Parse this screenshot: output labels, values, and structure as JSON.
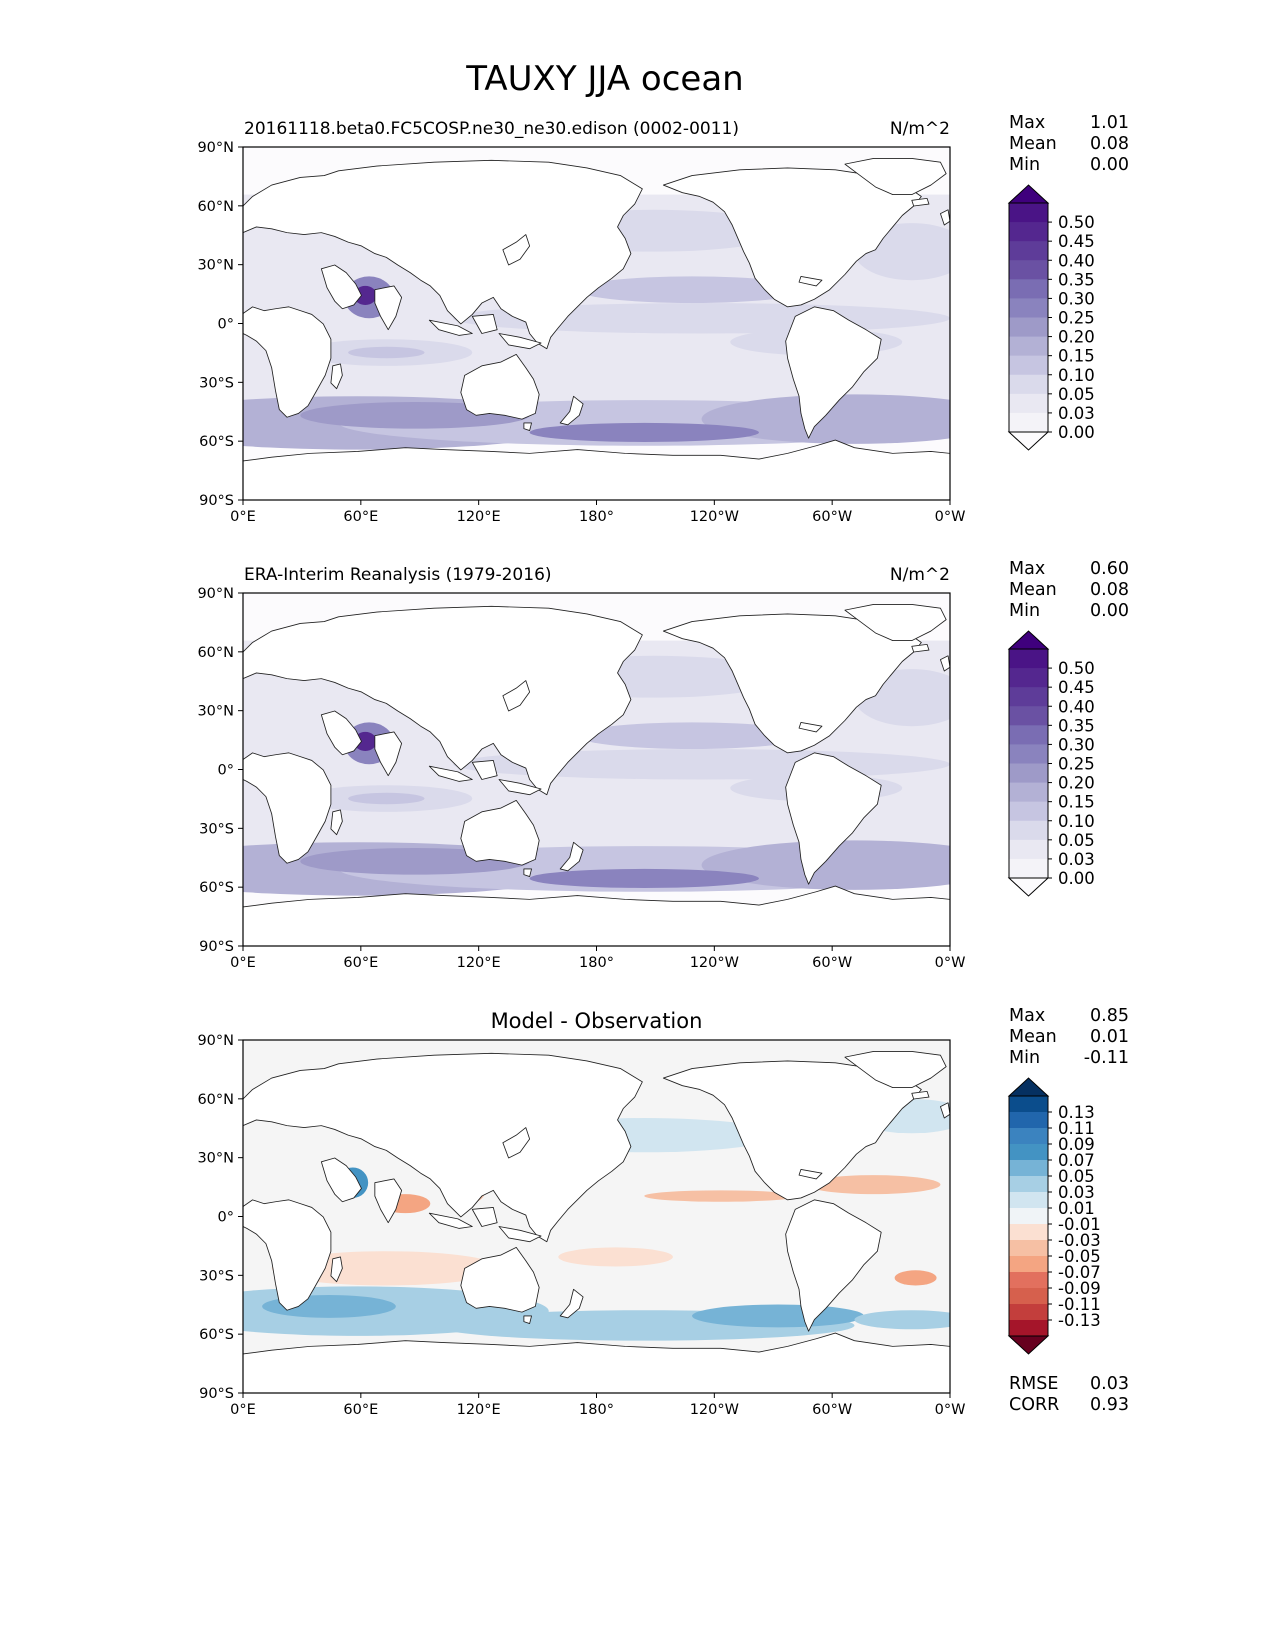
{
  "figure": {
    "title": "TAUXY JJA ocean"
  },
  "panels": [
    {
      "id": "model",
      "title_left": "20161118.beta0.FC5COSP.ne30_ne30.edison (0002-0011)",
      "title_center": "",
      "units": "N/m^2",
      "stats": {
        "labels": [
          "Max",
          "Mean",
          "Min"
        ],
        "values": [
          "1.01",
          "0.08",
          "0.00"
        ]
      },
      "colorbar": {
        "labels": [
          "0.50",
          "0.45",
          "0.40",
          "0.35",
          "0.30",
          "0.25",
          "0.20",
          "0.15",
          "0.10",
          "0.05",
          "0.03",
          "0.00"
        ],
        "colors": [
          "#3f007d",
          "#4a1486",
          "#54278f",
          "#5e3c99",
          "#6a51a3",
          "#7a6db3",
          "#8a83be",
          "#9e9ac8",
          "#b3b1d5",
          "#c6c5e1",
          "#dadaeb",
          "#e9e8f2",
          "#f4f3f8",
          "#fcfbfd"
        ],
        "extend": "both"
      }
    },
    {
      "id": "obs",
      "title_left": "ERA-Interim Reanalysis (1979-2016)",
      "title_center": "",
      "units": "N/m^2",
      "stats": {
        "labels": [
          "Max",
          "Mean",
          "Min"
        ],
        "values": [
          "0.60",
          "0.08",
          "0.00"
        ]
      },
      "colorbar": {
        "labels": [
          "0.50",
          "0.45",
          "0.40",
          "0.35",
          "0.30",
          "0.25",
          "0.20",
          "0.15",
          "0.10",
          "0.05",
          "0.03",
          "0.00"
        ],
        "colors": [
          "#3f007d",
          "#4a1486",
          "#54278f",
          "#5e3c99",
          "#6a51a3",
          "#7a6db3",
          "#8a83be",
          "#9e9ac8",
          "#b3b1d5",
          "#c6c5e1",
          "#dadaeb",
          "#e9e8f2",
          "#f4f3f8",
          "#fcfbfd"
        ],
        "extend": "both"
      }
    },
    {
      "id": "diff",
      "title_left": "",
      "title_center": "Model - Observation",
      "units": "",
      "stats": {
        "labels": [
          "Max",
          "Mean",
          "Min"
        ],
        "values": [
          "0.85",
          "0.01",
          "-0.11"
        ]
      },
      "colorbar": {
        "labels": [
          "0.13",
          "0.11",
          "0.09",
          "0.07",
          "0.05",
          "0.03",
          "0.01",
          "-0.01",
          "-0.03",
          "-0.05",
          "-0.07",
          "-0.09",
          "-0.11",
          "-0.13"
        ],
        "colors": [
          "#053061",
          "#0b4d8c",
          "#2166ac",
          "#3b83bf",
          "#4393c3",
          "#76b3d6",
          "#a7cfe4",
          "#d1e5f0",
          "#f0f4f7",
          "#fbe0d2",
          "#f6c0a4",
          "#f4a582",
          "#e2705e",
          "#d6604d",
          "#c33e3c",
          "#a5152a",
          "#67001f"
        ],
        "extend": "both"
      },
      "metrics": {
        "labels": [
          "RMSE",
          "CORR"
        ],
        "values": [
          "0.03",
          "0.93"
        ]
      }
    }
  ],
  "axes": {
    "lat_ticks": [
      "90°N",
      "60°N",
      "30°N",
      "0°",
      "30°S",
      "60°S",
      "90°S"
    ],
    "lon_ticks": [
      "0°E",
      "60°E",
      "120°E",
      "180°",
      "120°W",
      "60°W",
      "0°W"
    ]
  },
  "chart_data": [
    {
      "type": "heatmap",
      "title": "20161118.beta0.FC5COSP.ne30_ne30.edison (0002-0011)",
      "units": "N/m^2",
      "xlabel": "",
      "ylabel": "",
      "x_ticks": [
        "0°E",
        "60°E",
        "120°E",
        "180°",
        "120°W",
        "60°W",
        "0°W"
      ],
      "y_ticks": [
        "90°N",
        "60°N",
        "30°N",
        "0°",
        "30°S",
        "60°S",
        "90°S"
      ],
      "xlim": [
        0,
        360
      ],
      "ylim": [
        -90,
        90
      ],
      "levels": [
        0.0,
        0.03,
        0.05,
        0.1,
        0.15,
        0.2,
        0.25,
        0.3,
        0.35,
        0.4,
        0.45,
        0.5
      ],
      "stats": {
        "max": 1.01,
        "mean": 0.08,
        "min": 0.0
      }
    },
    {
      "type": "heatmap",
      "title": "ERA-Interim Reanalysis (1979-2016)",
      "units": "N/m^2",
      "xlabel": "",
      "ylabel": "",
      "x_ticks": [
        "0°E",
        "60°E",
        "120°E",
        "180°",
        "120°W",
        "60°W",
        "0°W"
      ],
      "y_ticks": [
        "90°N",
        "60°N",
        "30°N",
        "0°",
        "30°S",
        "60°S",
        "90°S"
      ],
      "xlim": [
        0,
        360
      ],
      "ylim": [
        -90,
        90
      ],
      "levels": [
        0.0,
        0.03,
        0.05,
        0.1,
        0.15,
        0.2,
        0.25,
        0.3,
        0.35,
        0.4,
        0.45,
        0.5
      ],
      "stats": {
        "max": 0.6,
        "mean": 0.08,
        "min": 0.0
      }
    },
    {
      "type": "heatmap",
      "title": "Model - Observation",
      "units": "",
      "xlabel": "",
      "ylabel": "",
      "x_ticks": [
        "0°E",
        "60°E",
        "120°E",
        "180°",
        "120°W",
        "60°W",
        "0°W"
      ],
      "y_ticks": [
        "90°N",
        "60°N",
        "30°N",
        "0°",
        "30°S",
        "60°S",
        "90°S"
      ],
      "xlim": [
        0,
        360
      ],
      "ylim": [
        -90,
        90
      ],
      "levels": [
        -0.13,
        -0.11,
        -0.09,
        -0.07,
        -0.05,
        -0.03,
        -0.01,
        0.01,
        0.03,
        0.05,
        0.07,
        0.09,
        0.11,
        0.13
      ],
      "stats": {
        "max": 0.85,
        "mean": 0.01,
        "min": -0.11,
        "rmse": 0.03,
        "corr": 0.93
      }
    }
  ]
}
